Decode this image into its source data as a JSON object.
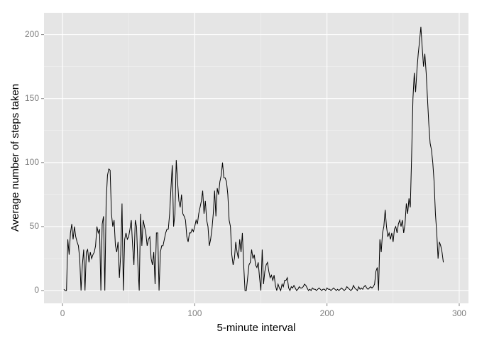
{
  "chart_data": {
    "type": "line",
    "x_label": "5-minute interval",
    "y_label": "Average number of steps taken",
    "color": "#000000",
    "x": [
      1,
      2,
      3,
      4,
      5,
      6,
      7,
      8,
      9,
      10,
      11,
      12,
      13,
      14,
      15,
      16,
      17,
      18,
      19,
      20,
      21,
      22,
      23,
      24,
      25,
      26,
      27,
      28,
      29,
      30,
      31,
      32,
      33,
      34,
      35,
      36,
      37,
      38,
      39,
      40,
      41,
      42,
      43,
      44,
      45,
      46,
      47,
      48,
      49,
      50,
      51,
      52,
      53,
      54,
      55,
      56,
      57,
      58,
      59,
      60,
      61,
      62,
      63,
      64,
      65,
      66,
      67,
      68,
      69,
      70,
      71,
      72,
      73,
      74,
      75,
      76,
      77,
      78,
      79,
      80,
      81,
      82,
      83,
      84,
      85,
      86,
      87,
      88,
      89,
      90,
      91,
      92,
      93,
      94,
      95,
      96,
      97,
      98,
      99,
      100,
      101,
      102,
      103,
      104,
      105,
      106,
      107,
      108,
      109,
      110,
      111,
      112,
      113,
      114,
      115,
      116,
      117,
      118,
      119,
      120,
      121,
      122,
      123,
      124,
      125,
      126,
      127,
      128,
      129,
      130,
      131,
      132,
      133,
      134,
      135,
      136,
      137,
      138,
      139,
      140,
      141,
      142,
      143,
      144,
      145,
      146,
      147,
      148,
      149,
      150,
      151,
      152,
      153,
      154,
      155,
      156,
      157,
      158,
      159,
      160,
      161,
      162,
      163,
      164,
      165,
      166,
      167,
      168,
      169,
      170,
      171,
      172,
      173,
      174,
      175,
      176,
      177,
      178,
      179,
      180,
      181,
      182,
      183,
      184,
      185,
      186,
      187,
      188,
      189,
      190,
      191,
      192,
      193,
      194,
      195,
      196,
      197,
      198,
      199,
      200,
      201,
      202,
      203,
      204,
      205,
      206,
      207,
      208,
      209,
      210,
      211,
      212,
      213,
      214,
      215,
      216,
      217,
      218,
      219,
      220,
      221,
      222,
      223,
      224,
      225,
      226,
      227,
      228,
      229,
      230,
      231,
      232,
      233,
      234,
      235,
      236,
      237,
      238,
      239,
      240,
      241,
      242,
      243,
      244,
      245,
      246,
      247,
      248,
      249,
      250,
      251,
      252,
      253,
      254,
      255,
      256,
      257,
      258,
      259,
      260,
      261,
      262,
      263,
      264,
      265,
      266,
      267,
      268,
      269,
      270,
      271,
      272,
      273,
      274,
      275,
      276,
      277,
      278,
      279,
      280,
      281,
      282,
      283,
      284,
      285,
      286,
      287,
      288
    ],
    "values": [
      1,
      0,
      0,
      40,
      28,
      45,
      52,
      40,
      50,
      42,
      38,
      35,
      25,
      0,
      20,
      32,
      0,
      30,
      32,
      22,
      30,
      25,
      28,
      30,
      35,
      50,
      45,
      48,
      0,
      52,
      58,
      0,
      70,
      90,
      95,
      94,
      60,
      50,
      55,
      35,
      30,
      38,
      10,
      28,
      68,
      0,
      40,
      45,
      40,
      42,
      48,
      55,
      35,
      20,
      55,
      50,
      20,
      0,
      60,
      35,
      55,
      50,
      45,
      35,
      40,
      42,
      25,
      20,
      30,
      5,
      45,
      45,
      0,
      30,
      35,
      35,
      40,
      45,
      48,
      48,
      60,
      80,
      98,
      50,
      60,
      102,
      85,
      70,
      65,
      75,
      60,
      58,
      55,
      42,
      38,
      45,
      45,
      48,
      46,
      50,
      55,
      52,
      60,
      65,
      70,
      78,
      60,
      70,
      55,
      50,
      35,
      40,
      48,
      60,
      78,
      58,
      80,
      75,
      85,
      90,
      100,
      88,
      88,
      85,
      75,
      55,
      50,
      28,
      20,
      25,
      38,
      30,
      25,
      40,
      30,
      45,
      20,
      0,
      0,
      10,
      20,
      22,
      32,
      25,
      28,
      20,
      18,
      22,
      10,
      0,
      32,
      5,
      15,
      20,
      22,
      15,
      10,
      12,
      8,
      12,
      4,
      0,
      5,
      2,
      0,
      5,
      3,
      8,
      8,
      10,
      2,
      0,
      3,
      2,
      4,
      2,
      0,
      1,
      3,
      2,
      2,
      3,
      5,
      4,
      2,
      0,
      1,
      0,
      2,
      1,
      1,
      0,
      1,
      2,
      1,
      0,
      1,
      1,
      0,
      2,
      1,
      1,
      0,
      1,
      2,
      1,
      0,
      1,
      0,
      1,
      2,
      1,
      0,
      1,
      3,
      2,
      1,
      0,
      1,
      4,
      2,
      1,
      0,
      3,
      1,
      2,
      1,
      3,
      4,
      2,
      1,
      2,
      3,
      2,
      3,
      5,
      15,
      18,
      0,
      40,
      30,
      45,
      50,
      63,
      50,
      42,
      45,
      40,
      45,
      38,
      48,
      50,
      45,
      52,
      55,
      50,
      55,
      45,
      52,
      68,
      60,
      72,
      65,
      105,
      150,
      170,
      155,
      172,
      185,
      195,
      206,
      190,
      175,
      185,
      170,
      150,
      130,
      115,
      110,
      100,
      85,
      60,
      45,
      25,
      38,
      35,
      30,
      22
    ],
    "xlim": [
      -14,
      307
    ],
    "ylim": [
      -10,
      217
    ],
    "xticks": [
      0,
      100,
      200,
      300
    ],
    "yticks": [
      0,
      50,
      100,
      150,
      200
    ],
    "x_minor_grid": [
      50,
      150,
      250
    ],
    "y_minor_grid": [
      25,
      75,
      125,
      175
    ],
    "grid": true
  }
}
